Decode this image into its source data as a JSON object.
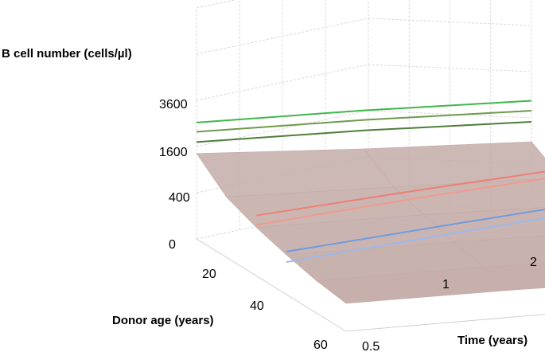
{
  "chart_data": {
    "type": "surface",
    "z_axis": {
      "label": "B cell number (cells/µl)",
      "ticks": [
        "0",
        "400",
        "1600",
        "3600"
      ]
    },
    "y_axis": {
      "label": "Donor age (years)",
      "ticks": [
        "20",
        "40",
        "60"
      ]
    },
    "x_axis": {
      "label": "Time (years)",
      "ticks": [
        "0.5",
        "1",
        "2"
      ]
    },
    "grid": true,
    "surface_color": "#c4aca8",
    "surface": {
      "age": [
        10,
        20,
        30,
        40,
        50,
        60
      ],
      "time": [
        0.5,
        1,
        2
      ],
      "values": [
        [
          1400,
          1100,
          900
        ],
        [
          700,
          600,
          500
        ],
        [
          450,
          420,
          350
        ],
        [
          300,
          280,
          230
        ],
        [
          200,
          190,
          150
        ],
        [
          150,
          140,
          110
        ]
      ]
    },
    "series": [
      {
        "color": "#3db84a",
        "age": 10,
        "time": [
          0.5,
          1,
          2
        ],
        "values": [
          2600,
          2500,
          2300
        ]
      },
      {
        "color": "#6e9a4c",
        "age": 10,
        "time": [
          0.5,
          1,
          2
        ],
        "values": [
          2200,
          2100,
          1900
        ]
      },
      {
        "color": "#4e7d3a",
        "age": 10,
        "time": [
          0.5,
          1,
          2
        ],
        "values": [
          1800,
          1700,
          1500
        ]
      },
      {
        "color": "#ef7f76",
        "age": 30,
        "time": [
          0.5,
          1,
          2
        ],
        "values": [
          700,
          1000,
          1300
        ]
      },
      {
        "color": "#f39a8f",
        "age": 30,
        "time": [
          0.5,
          1,
          2
        ],
        "values": [
          500,
          800,
          1100
        ]
      },
      {
        "color": "#6f9be0",
        "age": 40,
        "time": [
          0.5,
          1,
          2
        ],
        "values": [
          350,
          600,
          900
        ]
      },
      {
        "color": "#9cb8ea",
        "age": 40,
        "time": [
          0.5,
          1,
          2
        ],
        "values": [
          200,
          420,
          700
        ]
      }
    ]
  }
}
